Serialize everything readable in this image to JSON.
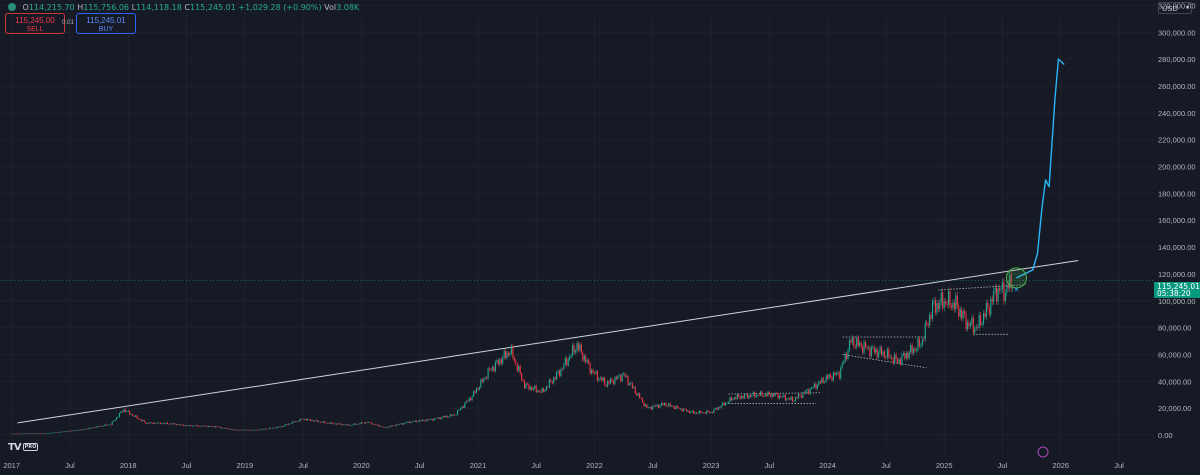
{
  "ohlc": {
    "open_label": "O",
    "open": "114,215.70",
    "high_label": "H",
    "high": "115,756.06",
    "low_label": "L",
    "low": "114,118.18",
    "close_label": "C",
    "close": "115,245.01",
    "change": "+1,029.28 (+0.90%)",
    "vol_label": "Vol",
    "vol": "3.08K"
  },
  "trade": {
    "sell_price": "115,245.00",
    "sell_label": "SELL",
    "buy_price": "115,245.01",
    "buy_label": "BUY",
    "spread": "0.01"
  },
  "currency": "USD",
  "logo": {
    "text": "TV",
    "badge": "PRO"
  },
  "current_price": {
    "value": "115,245.01",
    "countdown": "05:38:20"
  },
  "colors": {
    "background": "#161a25",
    "grid": "#1e222d",
    "up": "#22ab94",
    "down": "#f23645",
    "projection": "#29b6f6",
    "trendline": "#d1d4dc",
    "dotted": "#b2b5be",
    "circle": "#4caf50",
    "text": "#b2b5be",
    "price_tag": "#089981"
  },
  "chart_data": {
    "type": "candlestick",
    "y_axis": {
      "scale": "linear",
      "range": [
        0,
        330000
      ],
      "ticks": [
        0,
        20000,
        40000,
        60000,
        80000,
        100000,
        120000,
        140000,
        160000,
        180000,
        200000,
        220000,
        240000,
        260000,
        280000,
        300000,
        320000
      ],
      "tick_labels": [
        "0.00",
        "20,000.00",
        "40,000.00",
        "60,000.00",
        "80,000.00",
        "100,000.00",
        "120,000.00",
        "140,000.00",
        "160,000.00",
        "180,000.00",
        "200,000.00",
        "220,000.00",
        "240,000.00",
        "260,000.00",
        "280,000.00",
        "300,000.00",
        "320,000.00"
      ],
      "position": "right"
    },
    "x_axis": {
      "range": [
        2016.9,
        2026.8
      ],
      "ticks": [
        2017.0,
        2017.5,
        2018.0,
        2018.5,
        2019.0,
        2019.5,
        2020.0,
        2020.5,
        2021.0,
        2021.5,
        2022.0,
        2022.5,
        2023.0,
        2023.5,
        2024.0,
        2024.5,
        2025.0,
        2025.5,
        2026.0,
        2026.5
      ],
      "tick_labels": [
        "2017",
        "Jul",
        "2018",
        "Jul",
        "2019",
        "Jul",
        "2020",
        "Jul",
        "2021",
        "Jul",
        "2022",
        "Jul",
        "2023",
        "Jul",
        "2024",
        "Jul",
        "2025",
        "Jul",
        "2026",
        "Jul"
      ]
    },
    "grid": true,
    "price_path": [
      [
        2017.0,
        1000
      ],
      [
        2017.3,
        1200
      ],
      [
        2017.6,
        4000
      ],
      [
        2017.85,
        8000
      ],
      [
        2017.96,
        19000
      ],
      [
        2018.05,
        14000
      ],
      [
        2018.15,
        9000
      ],
      [
        2018.35,
        8500
      ],
      [
        2018.5,
        7000
      ],
      [
        2018.75,
        6300
      ],
      [
        2018.9,
        3800
      ],
      [
        2019.1,
        3700
      ],
      [
        2019.3,
        6000
      ],
      [
        2019.5,
        12000
      ],
      [
        2019.7,
        9000
      ],
      [
        2019.9,
        7300
      ],
      [
        2020.05,
        9500
      ],
      [
        2020.2,
        5500
      ],
      [
        2020.4,
        9500
      ],
      [
        2020.6,
        11500
      ],
      [
        2020.8,
        15000
      ],
      [
        2020.95,
        29000
      ],
      [
        2021.1,
        48000
      ],
      [
        2021.28,
        63000
      ],
      [
        2021.4,
        37000
      ],
      [
        2021.55,
        32000
      ],
      [
        2021.7,
        47000
      ],
      [
        2021.85,
        67000
      ],
      [
        2021.98,
        47000
      ],
      [
        2022.1,
        38000
      ],
      [
        2022.25,
        45000
      ],
      [
        2022.45,
        20000
      ],
      [
        2022.6,
        23000
      ],
      [
        2022.85,
        16500
      ],
      [
        2023.0,
        17000
      ],
      [
        2023.2,
        28000
      ],
      [
        2023.4,
        30000
      ],
      [
        2023.55,
        30000
      ],
      [
        2023.7,
        26000
      ],
      [
        2023.85,
        34000
      ],
      [
        2023.98,
        42000
      ],
      [
        2024.1,
        46000
      ],
      [
        2024.2,
        70000
      ],
      [
        2024.35,
        64000
      ],
      [
        2024.5,
        60000
      ],
      [
        2024.6,
        55000
      ],
      [
        2024.8,
        68000
      ],
      [
        2024.9,
        95000
      ],
      [
        2025.0,
        100000
      ],
      [
        2025.1,
        97000
      ],
      [
        2025.2,
        83000
      ],
      [
        2025.28,
        80000
      ],
      [
        2025.38,
        95000
      ],
      [
        2025.45,
        108000
      ],
      [
        2025.52,
        107000
      ],
      [
        2025.6,
        117000
      ]
    ],
    "trendline": [
      [
        2017.05,
        9000
      ],
      [
        2026.15,
        130000
      ]
    ],
    "projection": [
      [
        2025.62,
        117000
      ],
      [
        2025.76,
        123000
      ],
      [
        2025.8,
        135000
      ],
      [
        2025.84,
        170000
      ],
      [
        2025.87,
        190000
      ],
      [
        2025.9,
        185000
      ],
      [
        2025.95,
        250000
      ],
      [
        2025.98,
        280000
      ],
      [
        2026.03,
        276000
      ]
    ],
    "dotted_levels": [
      {
        "x": [
          2023.15,
          2023.95
        ],
        "y": [
          30500,
          31500
        ]
      },
      {
        "x": [
          2023.15,
          2023.9
        ],
        "y": [
          23500,
          23500
        ]
      },
      {
        "x": [
          2024.13,
          2024.85
        ],
        "y": [
          73000,
          73000
        ]
      },
      {
        "x": [
          2024.13,
          2024.85
        ],
        "y": [
          60000,
          50000
        ]
      },
      {
        "x": [
          2024.95,
          2025.7
        ],
        "y": [
          108000,
          112000
        ]
      },
      {
        "x": [
          2025.25,
          2025.55
        ],
        "y": [
          75000,
          75000
        ]
      }
    ],
    "highlight_circle": {
      "x": 2025.62,
      "y": 117000
    },
    "current_price_line": 115245.01
  }
}
